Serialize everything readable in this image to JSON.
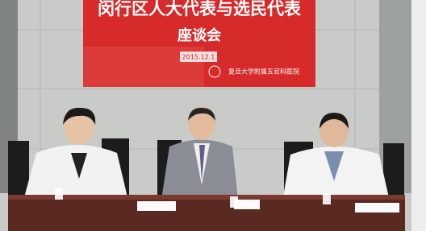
{
  "banner": {
    "title": "闵行区人大代表与选民代表",
    "subtitle": "座谈会",
    "date": "2015.12.1",
    "organizer": "复旦大学附属五官科医院"
  }
}
